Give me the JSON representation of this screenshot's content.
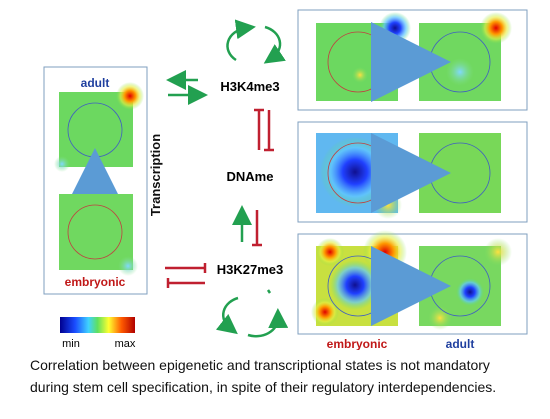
{
  "left_panel": {
    "top_label": "adult",
    "bottom_label": "embryonic",
    "side_label": "Transcription"
  },
  "marks": [
    "H3K4me3",
    "DNAme",
    "H3K27me3"
  ],
  "colorbar": {
    "min": "min",
    "max": "max"
  },
  "right_panel": {
    "left_label": "embryonic",
    "right_label": "adult"
  },
  "caption": [
    "Correlation between epigenetic and transcriptional states is not mandatory",
    "during stem cell specification, in spite of their regulatory interdependencies."
  ]
}
